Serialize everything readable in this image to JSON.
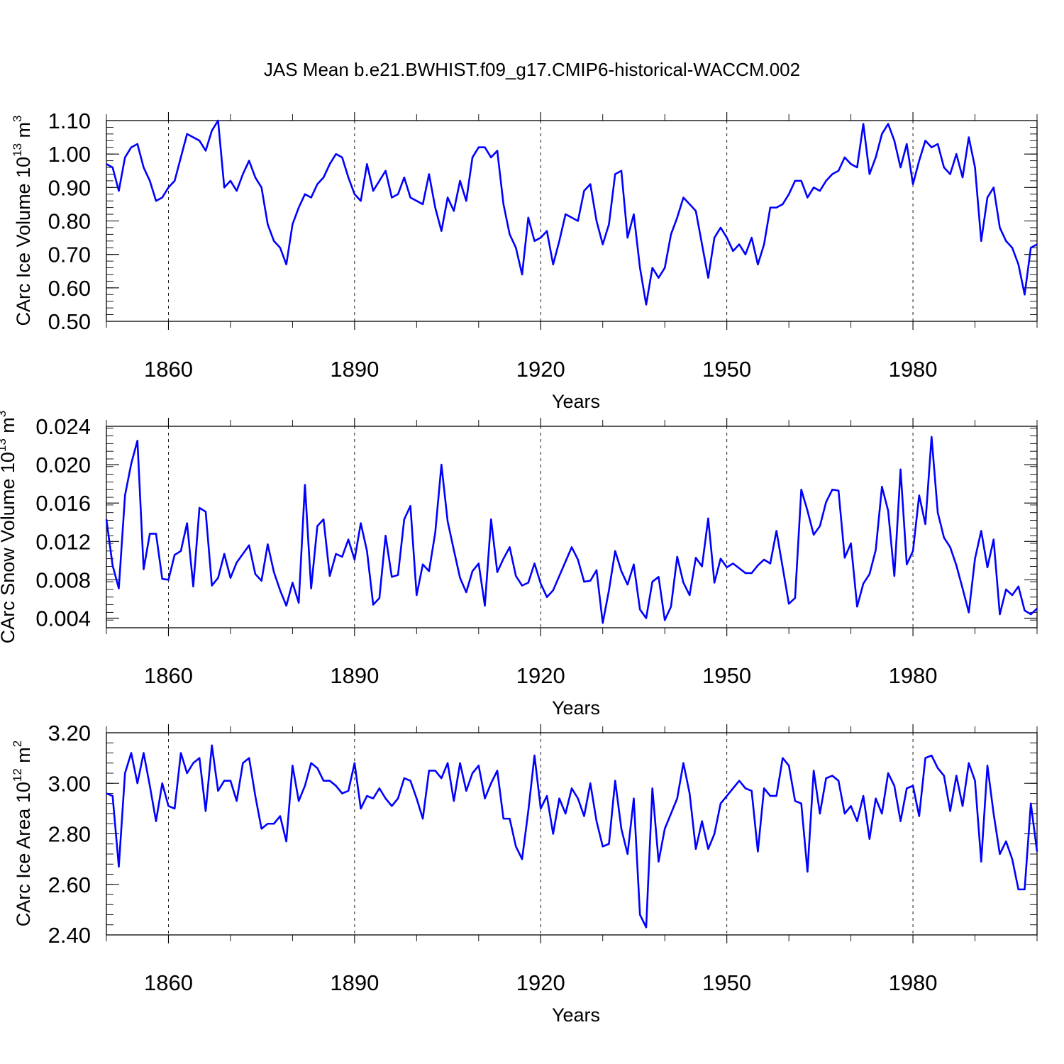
{
  "chart_data": [
    {
      "type": "line",
      "title": "JAS Mean b.e21.BWHIST.f09_g17.CMIP6-historical-WACCM.002",
      "xlabel": "Years",
      "ylabel_text": "CArc Ice Volume 10",
      "ylabel_exp": "13",
      "ylabel_unit": "m",
      "ylabel_unit_exp": "3",
      "xlim": [
        1850,
        2000
      ],
      "ylim": [
        0.5,
        1.1
      ],
      "xticks": [
        1860,
        1890,
        1920,
        1950,
        1980
      ],
      "xtick_labels": [
        "1860",
        "1890",
        "1920",
        "1950",
        "1980"
      ],
      "yticks": [
        0.5,
        0.6,
        0.7,
        0.8,
        0.9,
        1.0,
        1.1
      ],
      "ytick_labels": [
        "0.50",
        "0.60",
        "0.70",
        "0.80",
        "0.90",
        "1.00",
        "1.10"
      ],
      "yminor_step": 0.02,
      "grid": "vertical dashed at major x ticks",
      "x_start": 1850,
      "series": [
        {
          "name": "CArc Ice Volume",
          "color": "#0000ff",
          "values": [
            0.97,
            0.96,
            0.89,
            0.99,
            1.02,
            1.03,
            0.96,
            0.92,
            0.86,
            0.87,
            0.9,
            0.92,
            0.99,
            1.06,
            1.05,
            1.04,
            1.01,
            1.07,
            1.1,
            0.9,
            0.92,
            0.89,
            0.94,
            0.98,
            0.93,
            0.9,
            0.79,
            0.74,
            0.72,
            0.67,
            0.79,
            0.84,
            0.88,
            0.87,
            0.91,
            0.93,
            0.97,
            1.0,
            0.99,
            0.93,
            0.88,
            0.86,
            0.97,
            0.89,
            0.92,
            0.95,
            0.87,
            0.88,
            0.93,
            0.87,
            0.86,
            0.85,
            0.94,
            0.84,
            0.77,
            0.87,
            0.83,
            0.92,
            0.86,
            0.99,
            1.02,
            1.02,
            0.99,
            1.01,
            0.85,
            0.76,
            0.72,
            0.64,
            0.81,
            0.74,
            0.75,
            0.77,
            0.67,
            0.74,
            0.82,
            0.81,
            0.8,
            0.89,
            0.91,
            0.8,
            0.73,
            0.79,
            0.94,
            0.95,
            0.75,
            0.82,
            0.66,
            0.55,
            0.66,
            0.63,
            0.66,
            0.76,
            0.81,
            0.87,
            0.85,
            0.83,
            0.73,
            0.63,
            0.75,
            0.78,
            0.75,
            0.71,
            0.73,
            0.7,
            0.75,
            0.67,
            0.73,
            0.84,
            0.84,
            0.85,
            0.88,
            0.92,
            0.92,
            0.87,
            0.9,
            0.89,
            0.92,
            0.94,
            0.95,
            0.99,
            0.97,
            0.96,
            1.09,
            0.94,
            0.99,
            1.06,
            1.09,
            1.04,
            0.96,
            1.03,
            0.91,
            0.98,
            1.04,
            1.02,
            1.03,
            0.96,
            0.94,
            1.0,
            0.93,
            1.05,
            0.96,
            0.74,
            0.87,
            0.9,
            0.78,
            0.74,
            0.72,
            0.67,
            0.58,
            0.72,
            0.73
          ]
        }
      ]
    },
    {
      "type": "line",
      "title": "",
      "xlabel": "Years",
      "ylabel_text": "CArc Snow Volume 10",
      "ylabel_exp": "13",
      "ylabel_unit": "m",
      "ylabel_unit_exp": "3",
      "xlim": [
        1850,
        2000
      ],
      "ylim": [
        0.003,
        0.024
      ],
      "xticks": [
        1860,
        1890,
        1920,
        1950,
        1980
      ],
      "xtick_labels": [
        "1860",
        "1890",
        "1920",
        "1950",
        "1980"
      ],
      "yticks": [
        0.004,
        0.008,
        0.012,
        0.016,
        0.02,
        0.024
      ],
      "ytick_labels": [
        "0.004",
        "0.008",
        "0.012",
        "0.016",
        "0.020",
        "0.024"
      ],
      "yminor_step": 0.0008,
      "grid": "vertical dashed at major x ticks",
      "x_start": 1850,
      "series": [
        {
          "name": "CArc Snow Volume",
          "color": "#0000ff",
          "values": [
            0.0143,
            0.0095,
            0.0071,
            0.0168,
            0.0201,
            0.0225,
            0.0091,
            0.0128,
            0.0128,
            0.0081,
            0.008,
            0.0106,
            0.011,
            0.0139,
            0.0073,
            0.0155,
            0.0151,
            0.0074,
            0.0082,
            0.0107,
            0.0082,
            0.0098,
            0.0107,
            0.0116,
            0.0086,
            0.0079,
            0.0117,
            0.0088,
            0.0069,
            0.0053,
            0.0077,
            0.0056,
            0.0179,
            0.0071,
            0.0136,
            0.0143,
            0.0084,
            0.0107,
            0.0104,
            0.0122,
            0.0101,
            0.0139,
            0.011,
            0.0054,
            0.0061,
            0.0126,
            0.0083,
            0.0085,
            0.0143,
            0.0157,
            0.0064,
            0.0096,
            0.0089,
            0.0129,
            0.02,
            0.0141,
            0.0111,
            0.0082,
            0.0067,
            0.0089,
            0.0097,
            0.0053,
            0.0143,
            0.0088,
            0.0102,
            0.0114,
            0.0084,
            0.0074,
            0.0077,
            0.0097,
            0.0076,
            0.0062,
            0.0069,
            0.0084,
            0.0099,
            0.0114,
            0.0101,
            0.0078,
            0.0079,
            0.009,
            0.0035,
            0.0069,
            0.011,
            0.0089,
            0.0075,
            0.0096,
            0.0049,
            0.004,
            0.0078,
            0.0083,
            0.0038,
            0.0052,
            0.0104,
            0.0077,
            0.0064,
            0.0103,
            0.0094,
            0.0144,
            0.0077,
            0.0102,
            0.0093,
            0.0097,
            0.0092,
            0.0087,
            0.0087,
            0.0095,
            0.0101,
            0.0097,
            0.0131,
            0.0093,
            0.0055,
            0.0061,
            0.0174,
            0.0152,
            0.0127,
            0.0136,
            0.0161,
            0.0174,
            0.0173,
            0.0103,
            0.0118,
            0.0052,
            0.0076,
            0.0086,
            0.0111,
            0.0177,
            0.0152,
            0.0084,
            0.0195,
            0.0096,
            0.011,
            0.0168,
            0.0138,
            0.0229,
            0.015,
            0.0124,
            0.0114,
            0.0095,
            0.0071,
            0.0046,
            0.0102,
            0.0131,
            0.0093,
            0.0122,
            0.0044,
            0.007,
            0.0064,
            0.0073,
            0.0048,
            0.0044,
            0.005
          ]
        }
      ]
    },
    {
      "type": "line",
      "title": "",
      "xlabel": "Years",
      "ylabel_text": "CArc Ice Area 10",
      "ylabel_exp": "12",
      "ylabel_unit": "m",
      "ylabel_unit_exp": "2",
      "xlim": [
        1850,
        2000
      ],
      "ylim": [
        2.4,
        3.2
      ],
      "xticks": [
        1860,
        1890,
        1920,
        1950,
        1980
      ],
      "xtick_labels": [
        "1860",
        "1890",
        "1920",
        "1950",
        "1980"
      ],
      "yticks": [
        2.4,
        2.6,
        2.8,
        3.0,
        3.2
      ],
      "ytick_labels": [
        "2.40",
        "2.60",
        "2.80",
        "3.00",
        "3.20"
      ],
      "yminor_step": 0.04,
      "grid": "vertical dashed at major x ticks",
      "x_start": 1850,
      "series": [
        {
          "name": "CArc Ice Area",
          "color": "#0000ff",
          "values": [
            2.96,
            2.95,
            2.67,
            3.04,
            3.12,
            3.0,
            3.12,
            2.99,
            2.85,
            3.0,
            2.91,
            2.9,
            3.12,
            3.04,
            3.08,
            3.1,
            2.89,
            3.15,
            2.97,
            3.01,
            3.01,
            2.93,
            3.08,
            3.1,
            2.95,
            2.82,
            2.84,
            2.84,
            2.87,
            2.77,
            3.07,
            2.93,
            2.99,
            3.08,
            3.06,
            3.01,
            3.01,
            2.99,
            2.96,
            2.97,
            3.08,
            2.9,
            2.95,
            2.94,
            2.98,
            2.94,
            2.91,
            2.94,
            3.02,
            3.01,
            2.94,
            2.86,
            3.05,
            3.05,
            3.02,
            3.08,
            2.93,
            3.08,
            2.97,
            3.04,
            3.07,
            2.94,
            3.0,
            3.05,
            2.86,
            2.86,
            2.75,
            2.7,
            2.89,
            3.11,
            2.9,
            2.95,
            2.8,
            2.94,
            2.88,
            2.98,
            2.94,
            2.87,
            3.0,
            2.85,
            2.75,
            2.76,
            3.01,
            2.82,
            2.72,
            2.94,
            2.48,
            2.43,
            2.98,
            2.69,
            2.82,
            2.88,
            2.94,
            3.08,
            2.96,
            2.74,
            2.85,
            2.74,
            2.8,
            2.92,
            2.95,
            2.98,
            3.01,
            2.98,
            2.97,
            2.73,
            2.98,
            2.95,
            2.95,
            3.1,
            3.07,
            2.93,
            2.92,
            2.65,
            3.05,
            2.88,
            3.02,
            3.03,
            3.01,
            2.88,
            2.91,
            2.85,
            2.95,
            2.78,
            2.94,
            2.88,
            3.04,
            2.99,
            2.85,
            2.98,
            2.99,
            2.87,
            3.1,
            3.11,
            3.06,
            3.03,
            2.89,
            3.03,
            2.91,
            3.08,
            3.01,
            2.69,
            3.07,
            2.88,
            2.72,
            2.77,
            2.7,
            2.58,
            2.58,
            2.92,
            2.73
          ]
        }
      ]
    }
  ]
}
